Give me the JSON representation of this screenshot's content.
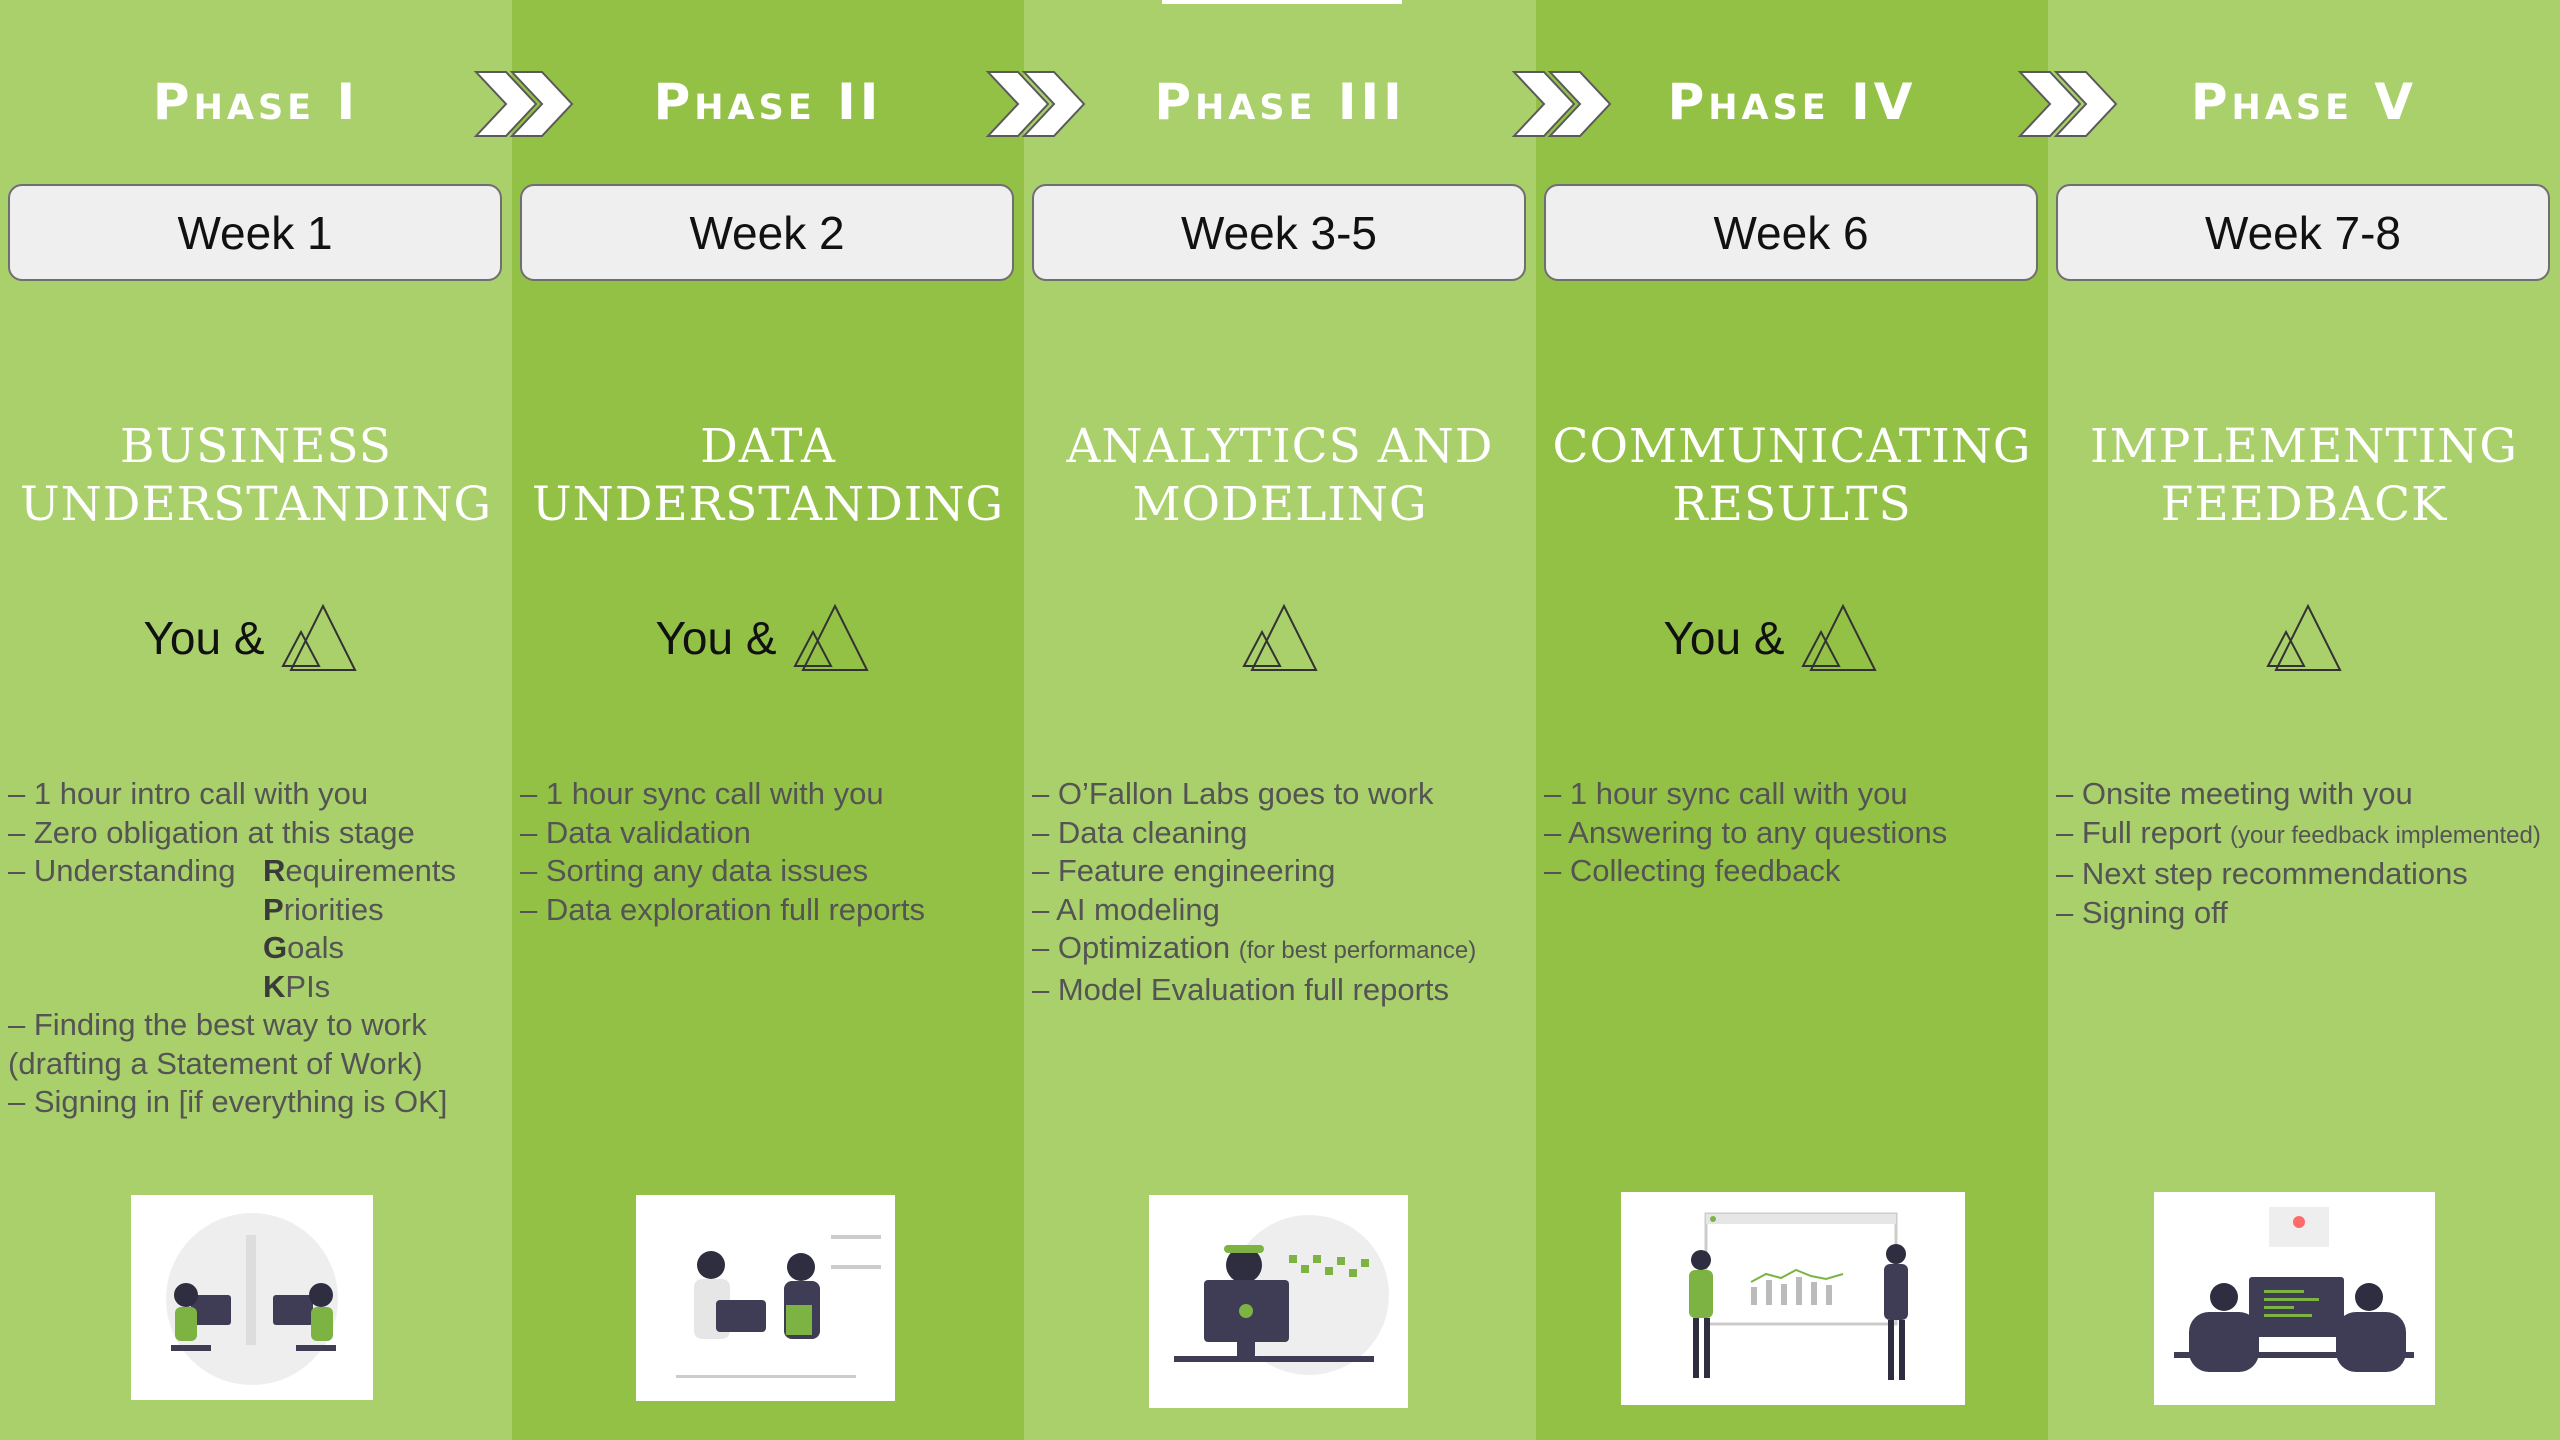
{
  "phases": [
    {
      "title": "Phase I",
      "week": "Week 1",
      "heading": [
        "BUSINESS",
        "UNDERSTANDING"
      ],
      "you_label": "You &",
      "bullets": [
        "– 1 hour intro call with you",
        "– Zero obligation at this stage",
        "– Understanding",
        "– Finding the best way to work",
        "(drafting a Statement of Work)",
        "– Signing in [if everything is OK]"
      ],
      "rpgk": [
        {
          "initial": "R",
          "rest": "equirements"
        },
        {
          "initial": "P",
          "rest": "riorities"
        },
        {
          "initial": "G",
          "rest": "oals"
        },
        {
          "initial": "K",
          "rest": "PIs"
        }
      ]
    },
    {
      "title": "Phase II",
      "week": "Week 2",
      "heading": [
        "DATA",
        "UNDERSTANDING"
      ],
      "you_label": "You &",
      "bullets": [
        "– 1 hour sync call with you",
        "– Data validation",
        "– Sorting any data issues",
        "– Data exploration full reports"
      ]
    },
    {
      "title": "Phase III",
      "week": "Week 3-5",
      "heading": [
        "ANALYTICS AND",
        "MODELING"
      ],
      "bullets": [
        "– O’Fallon Labs goes to work",
        "– Data cleaning",
        "– Feature engineering",
        "– AI modeling",
        "– Optimization",
        "– Model Evaluation full reports"
      ],
      "optimization_note": "(for best performance)"
    },
    {
      "title": "Phase IV",
      "week": "Week 6",
      "heading": [
        "COMMUNICATING",
        "RESULTS"
      ],
      "you_label": "You &",
      "bullets": [
        "– 1 hour sync call with you",
        "– Answering to any questions",
        "– Collecting feedback"
      ]
    },
    {
      "title": "Phase V",
      "week": "Week 7-8",
      "heading": [
        "IMPLEMENTING",
        "FEEDBACK"
      ],
      "bullets": [
        "– Onsite meeting with you",
        "– Full report",
        "– Next step recommendations",
        "– Signing off"
      ],
      "full_report_note": "(your feedback implemented)"
    }
  ],
  "colors": {
    "light_column": "#a9d06b",
    "dark_column": "#93c146",
    "accent_green": "#7cb342",
    "text_white": "#ffffff"
  },
  "icons": [
    "chevron-arrows-icon",
    "triangles-logo-icon"
  ]
}
